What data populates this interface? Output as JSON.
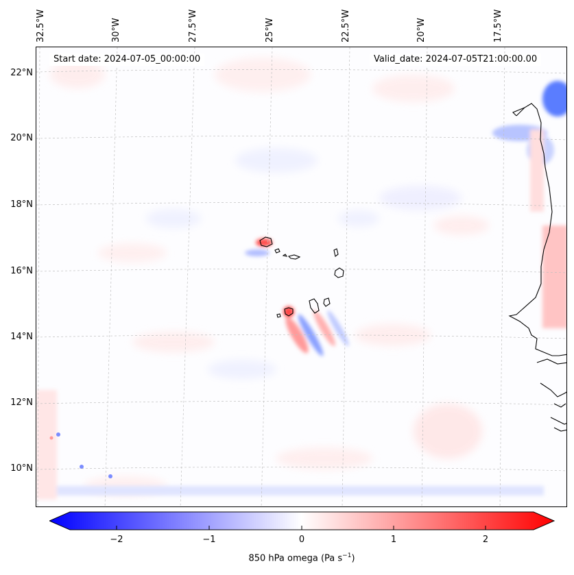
{
  "map": {
    "start_date": "Start date: 2024-07-05_00:00:00",
    "valid_date": "Valid_date: 2024-07-05T21:00:00.00",
    "longitude_labels": [
      "32.5°W",
      "30°W",
      "27.5°W",
      "25°W",
      "22.5°W",
      "20°W",
      "17.5°W"
    ],
    "latitude_labels": [
      "22°N",
      "20°N",
      "18°N",
      "16°N",
      "14°N",
      "12°N",
      "10°N"
    ],
    "features": [
      "Cabo Verde islands",
      "West African coastline (Mauritania, Senegal, Gambia, Guinea-Bissau)"
    ]
  },
  "colorbar": {
    "variable": "850 hPa omega",
    "units_base": "(Pa s",
    "units_exp": "−1",
    "units_close": ")",
    "ticks": [
      "−2",
      "−1",
      "0",
      "1",
      "2"
    ],
    "range": [
      -2.6,
      2.6
    ],
    "colormap": "bwr",
    "min_color": "#0000ff",
    "mid_color": "#ffffff",
    "max_color": "#ff0000"
  }
}
